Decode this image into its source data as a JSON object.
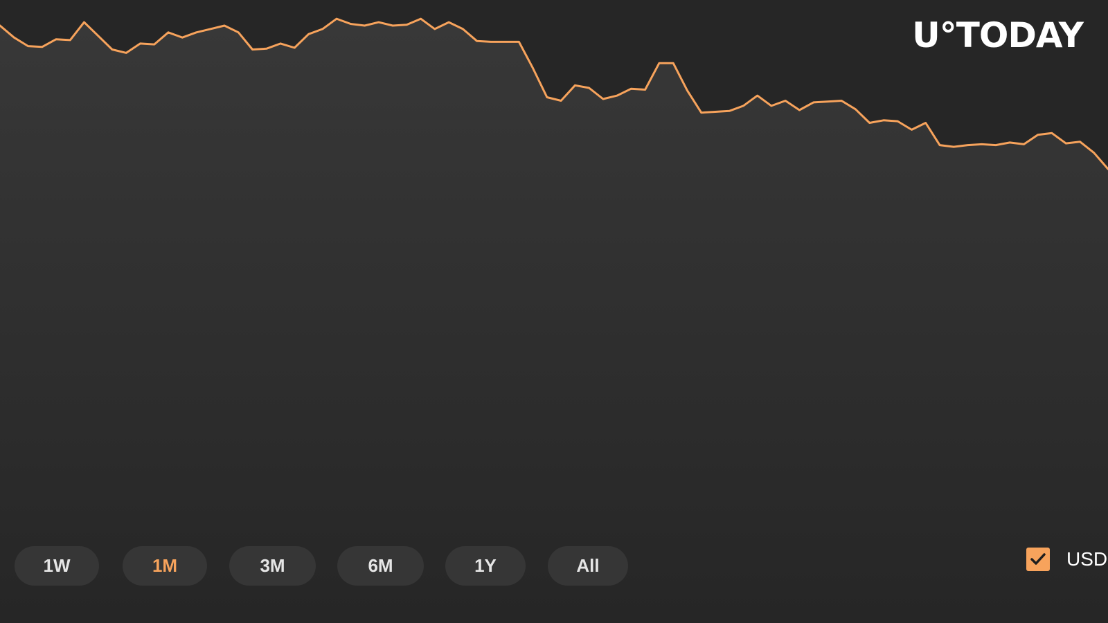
{
  "logo": {
    "text": "U°TODAY"
  },
  "range_buttons": [
    {
      "label": "1W",
      "active": false
    },
    {
      "label": "1M",
      "active": true
    },
    {
      "label": "3M",
      "active": false
    },
    {
      "label": "6M",
      "active": false
    },
    {
      "label": "1Y",
      "active": false
    },
    {
      "label": "All",
      "active": false
    }
  ],
  "currency": {
    "label": "USD",
    "checked": true
  },
  "colors": {
    "background": "#262626",
    "line": "#f7a35c",
    "fill_top": "#383838",
    "button_bg": "#363636",
    "active_text": "#f7a35c"
  },
  "chart_data": {
    "type": "area",
    "series": [
      {
        "values": [
          100,
          93,
          88,
          87.5,
          92,
          91.5,
          102,
          94,
          86,
          84,
          89.5,
          89,
          96,
          93,
          96,
          98,
          100,
          96,
          86,
          86.5,
          89.5,
          87,
          95,
          98,
          104,
          101,
          100,
          102,
          100,
          100.5,
          104,
          98,
          102,
          98,
          91,
          90.5,
          90.5,
          90.5,
          75,
          58,
          56,
          65,
          63.5,
          57,
          59,
          63,
          62.5,
          78,
          78,
          62,
          49,
          49.5,
          50,
          53,
          59,
          53,
          56,
          50.5,
          55,
          55.5,
          56,
          51,
          43,
          44.5,
          44,
          39,
          43,
          30,
          29,
          30,
          30.5,
          30,
          31.5,
          30.5,
          36,
          37,
          31,
          32,
          25.5,
          16
        ]
      }
    ],
    "ylim": [
      -250,
      115
    ],
    "grid": false,
    "legend": "none"
  }
}
